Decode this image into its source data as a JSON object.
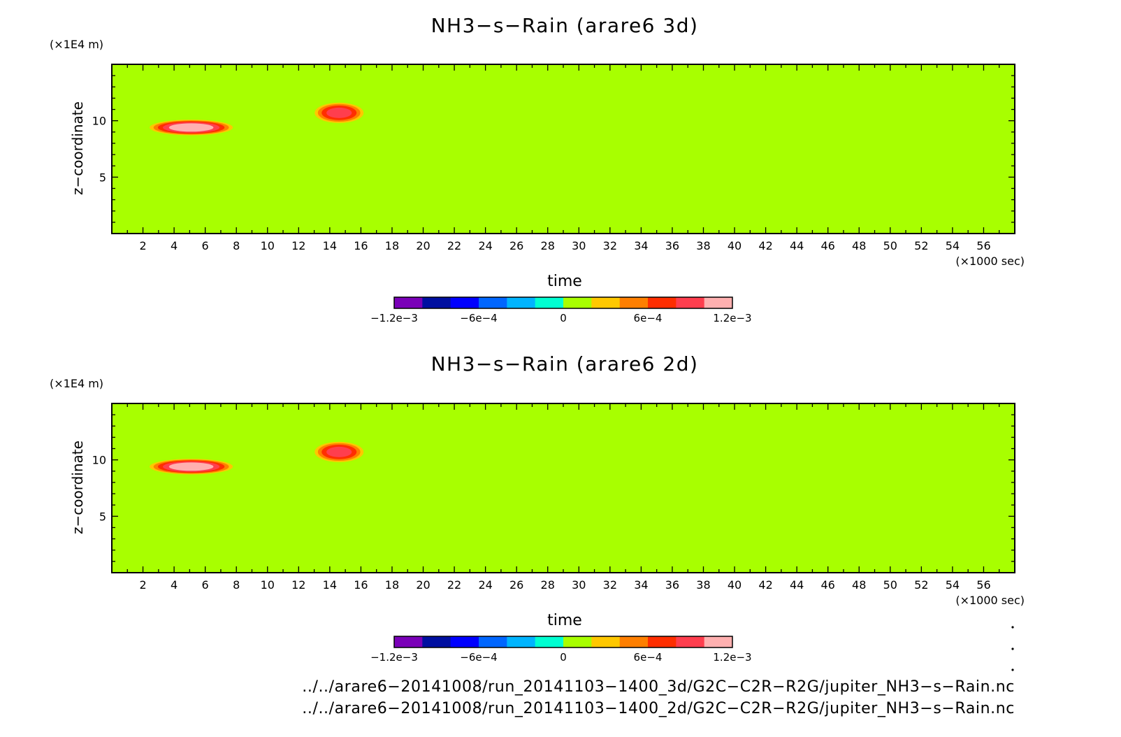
{
  "colorbar": {
    "colors": [
      "#7a00b8",
      "#000fa0",
      "#0000ff",
      "#0066ff",
      "#00b4ff",
      "#00ffd2",
      "#a8ff00",
      "#ffc800",
      "#ff7f00",
      "#ff2e00",
      "#ff3e4e",
      "#ffb0b0"
    ],
    "ticks": [
      {
        "value": -0.0012,
        "label": "−1.2e−3"
      },
      {
        "value": -0.0006,
        "label": "−6e−4"
      },
      {
        "value": 0,
        "label": "0"
      },
      {
        "value": 0.0006,
        "label": "6e−4"
      },
      {
        "value": 0.0012,
        "label": "1.2e−3"
      }
    ],
    "range": [
      -0.0012,
      0.0012
    ]
  },
  "footer": {
    "lines": [
      "../../arare6−20141008/run_20141103−1400_3d/G2C−C2R−R2G/jupiter_NH3−s−Rain.nc",
      "../../arare6−20141008/run_20141103−1400_2d/G2C−C2R−R2G/jupiter_NH3−s−Rain.nc"
    ]
  },
  "chart_data": [
    {
      "type": "heatmap",
      "title": "NH3−s−Rain (arare6 3d)",
      "xlabel": "time",
      "x_unit": "(×1000 sec)",
      "ylabel": "z−coordinate",
      "y_unit": "(×1E4 m)",
      "xlim": [
        0,
        58
      ],
      "ylim": [
        0,
        15
      ],
      "x_ticks": [
        2,
        4,
        6,
        8,
        10,
        12,
        14,
        16,
        18,
        20,
        22,
        24,
        26,
        28,
        30,
        32,
        34,
        36,
        38,
        40,
        42,
        44,
        46,
        48,
        50,
        52,
        54,
        56
      ],
      "y_ticks": [
        5,
        10
      ],
      "background_level": 5e-05,
      "features": [
        {
          "x": 5.1,
          "y": 9.4,
          "rx": 2.9,
          "ry": 0.75,
          "peak": 0.0012
        },
        {
          "x": 3.0,
          "y": 9.5,
          "rx": 1.4,
          "ry": 0.12,
          "peak": 0.0002
        },
        {
          "x": 9.6,
          "y": 9.45,
          "rx": 1.5,
          "ry": 0.1,
          "peak": 0.0002
        },
        {
          "x": 14.6,
          "y": 10.7,
          "rx": 1.75,
          "ry": 1.0,
          "peak": 0.0009
        },
        {
          "x": 16.5,
          "y": 10.0,
          "rx": 0.6,
          "ry": 0.1,
          "peak": 0.0002
        },
        {
          "x": 26.6,
          "y": 9.4,
          "rx": 0.15,
          "ry": 0.1,
          "peak": 0.0002
        }
      ]
    },
    {
      "type": "heatmap",
      "title": "NH3−s−Rain (arare6 2d)",
      "xlabel": "time",
      "x_unit": "(×1000 sec)",
      "ylabel": "z−coordinate",
      "y_unit": "(×1E4 m)",
      "xlim": [
        0,
        58
      ],
      "ylim": [
        0,
        15
      ],
      "x_ticks": [
        2,
        4,
        6,
        8,
        10,
        12,
        14,
        16,
        18,
        20,
        22,
        24,
        26,
        28,
        30,
        32,
        34,
        36,
        38,
        40,
        42,
        44,
        46,
        48,
        50,
        52,
        54,
        56
      ],
      "y_ticks": [
        5,
        10
      ],
      "background_level": 5e-05,
      "features": [
        {
          "x": 5.1,
          "y": 9.4,
          "rx": 2.9,
          "ry": 0.75,
          "peak": 0.0012
        },
        {
          "x": 3.0,
          "y": 9.5,
          "rx": 1.4,
          "ry": 0.12,
          "peak": 0.0002
        },
        {
          "x": 9.6,
          "y": 9.45,
          "rx": 1.5,
          "ry": 0.1,
          "peak": 0.0002
        },
        {
          "x": 14.6,
          "y": 10.7,
          "rx": 1.75,
          "ry": 1.0,
          "peak": 0.0009
        },
        {
          "x": 16.5,
          "y": 10.0,
          "rx": 0.6,
          "ry": 0.1,
          "peak": 0.0002
        },
        {
          "x": 26.6,
          "y": 9.4,
          "rx": 0.15,
          "ry": 0.1,
          "peak": 0.0002
        }
      ]
    }
  ]
}
